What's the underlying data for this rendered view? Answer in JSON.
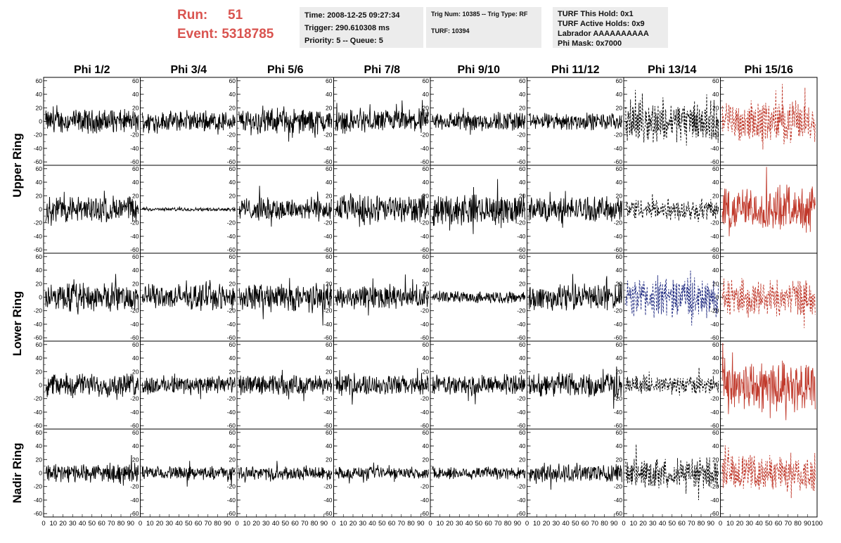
{
  "header": {
    "run_label": "Run:",
    "run_value": "51",
    "event_label": "Event:",
    "event_value": "5318785"
  },
  "info_time": {
    "time": "Time: 2008-12-25 09:27:34",
    "trigger": "Trigger: 290.610308 ms",
    "priority": "Priority: 5 -- Queue: 5"
  },
  "info_trig": {
    "trig": "Trig Num: 10385 -- Trig Type: RF",
    "turf": "TURF: 10394"
  },
  "info_turf": {
    "hold": "TURF This Hold: 0x1",
    "active": "TURF Active Holds: 0x9",
    "labrador": "Labrador AAAAAAAAAA",
    "mask": "Phi Mask: 0x7000"
  },
  "chart_data": {
    "type": "line",
    "columns": [
      "Phi 1/2",
      "Phi 3/4",
      "Phi 5/6",
      "Phi 7/8",
      "Phi 9/10",
      "Phi 11/12",
      "Phi 13/14",
      "Phi 15/16"
    ],
    "ring_labels": [
      "Upper Ring",
      "Lower Ring",
      "Nadir Ring"
    ],
    "rows": 5,
    "ylim": [
      -65,
      65
    ],
    "yticks": [
      -60,
      -40,
      -20,
      0,
      20,
      40,
      60
    ],
    "xlim": [
      0,
      100
    ],
    "xtick_labels": [
      "0",
      "10",
      "20",
      "30",
      "40",
      "50",
      "60",
      "70",
      "80",
      "90",
      "100"
    ],
    "colors": {
      "normal": "#000000",
      "red": "#c0392b",
      "blue": "#1f2a80"
    },
    "panel_amplitude": [
      [
        14,
        12,
        15,
        14,
        12,
        10,
        24,
        24
      ],
      [
        16,
        2,
        14,
        17,
        18,
        15,
        13,
        26
      ],
      [
        17,
        15,
        17,
        14,
        7,
        16,
        24,
        22
      ],
      [
        14,
        11,
        12,
        12,
        12,
        15,
        11,
        30
      ],
      [
        11,
        8,
        8,
        7,
        8,
        11,
        18,
        22
      ]
    ],
    "panel_style": [
      [
        "n",
        "n",
        "n",
        "n",
        "n",
        "n",
        "nd",
        "rd"
      ],
      [
        "n",
        "n",
        "n",
        "n",
        "n",
        "n",
        "nd",
        "r"
      ],
      [
        "n",
        "n",
        "n",
        "n",
        "n",
        "n",
        "bd",
        "rd"
      ],
      [
        "n",
        "n",
        "n",
        "n",
        "n",
        "n",
        "nd",
        "r"
      ],
      [
        "n",
        "n",
        "n",
        "n",
        "n",
        "n",
        "nd",
        "rd"
      ]
    ]
  }
}
